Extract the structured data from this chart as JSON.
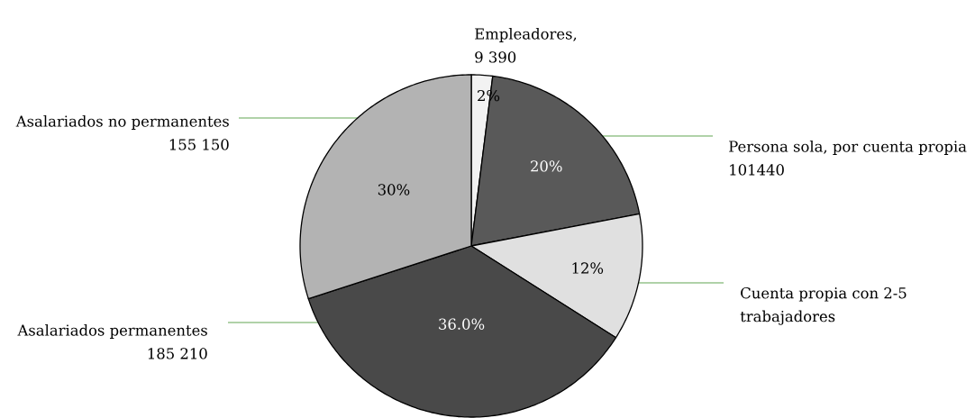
{
  "chart_data": {
    "type": "pie",
    "categories": [
      "Empleadores, 9 390",
      "Persona sola, por cuenta propia 101440",
      "Cuenta propia con 2-5 trabajadores",
      "Asalariados permanentes 185 210",
      "Asalariados no permanentes 155 150"
    ],
    "values": [
      2,
      20,
      12,
      36.0,
      30
    ],
    "colors": [
      "#f2f2f2",
      "#595959",
      "#e0e0e0",
      "#494949",
      "#b3b3b3"
    ],
    "value_labels": [
      "2%",
      "20%",
      "12%",
      "36.0%",
      "30%"
    ]
  }
}
